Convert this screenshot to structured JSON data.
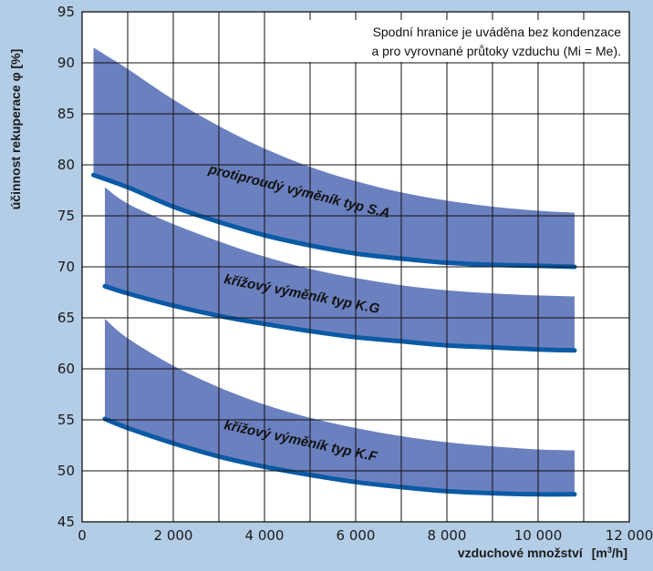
{
  "chart_data": {
    "type": "area",
    "xlabel": "vzduchové množství",
    "xunit_base": "[m",
    "xunit_sup": "3",
    "xunit_tail": "/h]",
    "ylabel": "účinnost rekuperace φ [%]",
    "xlim": [
      0,
      12000
    ],
    "ylim": [
      45,
      95
    ],
    "x_ticks": [
      0,
      2000,
      4000,
      6000,
      8000,
      10000,
      12000
    ],
    "x_tick_labels": [
      "0",
      "2 000",
      "4 000",
      "6 000",
      "8 000",
      "10 000",
      "12 000"
    ],
    "y_ticks": [
      45,
      50,
      55,
      60,
      65,
      70,
      75,
      80,
      85,
      90,
      95
    ],
    "y_tick_labels": [
      "45",
      "50",
      "55",
      "60",
      "65",
      "70",
      "75",
      "80",
      "85",
      "90",
      "95"
    ],
    "grid": true,
    "note_lines": [
      "Spodní hranice je uváděna bez kondenzace",
      "a pro vyrovnané průtoky vzduchu (Mi = Me)."
    ],
    "series": [
      {
        "name": "protiproudý výměník typ S.A",
        "x": [
          250,
          1000,
          2000,
          3000,
          4000,
          5000,
          6000,
          7000,
          8000,
          9000,
          10000,
          10800
        ],
        "upper": [
          91.5,
          89.4,
          86.4,
          83.8,
          81.6,
          79.8,
          78.4,
          77.3,
          76.5,
          75.9,
          75.5,
          75.3
        ],
        "lower": [
          79.0,
          77.8,
          75.9,
          74.4,
          73.1,
          72.1,
          71.3,
          70.8,
          70.4,
          70.2,
          70.1,
          70.0
        ]
      },
      {
        "name": "křížový výměník typ K.G",
        "x": [
          500,
          1000,
          2000,
          3000,
          4000,
          5000,
          6000,
          7000,
          8000,
          9000,
          10000,
          10800
        ],
        "upper": [
          77.8,
          76.2,
          74.2,
          72.5,
          71.0,
          69.8,
          68.9,
          68.2,
          67.7,
          67.4,
          67.2,
          67.1
        ],
        "lower": [
          68.1,
          67.4,
          66.2,
          65.2,
          64.4,
          63.7,
          63.1,
          62.7,
          62.3,
          62.1,
          61.9,
          61.8
        ]
      },
      {
        "name": "křížový výměník typ K.F",
        "x": [
          500,
          1000,
          2000,
          3000,
          4000,
          5000,
          6000,
          7000,
          8000,
          9000,
          10000,
          10800
        ],
        "upper": [
          64.9,
          63.0,
          60.3,
          58.2,
          56.5,
          55.2,
          54.2,
          53.4,
          52.8,
          52.4,
          52.1,
          52.0
        ],
        "lower": [
          55.1,
          54.2,
          52.7,
          51.4,
          50.4,
          49.6,
          48.9,
          48.4,
          48.0,
          47.8,
          47.7,
          47.7
        ]
      }
    ],
    "colors": {
      "background": "#b3cde6",
      "plot_area": "#ffffff",
      "band_fill": "#6b80bf",
      "lower_line": "#0a5aa5",
      "grid": "#111111"
    }
  }
}
